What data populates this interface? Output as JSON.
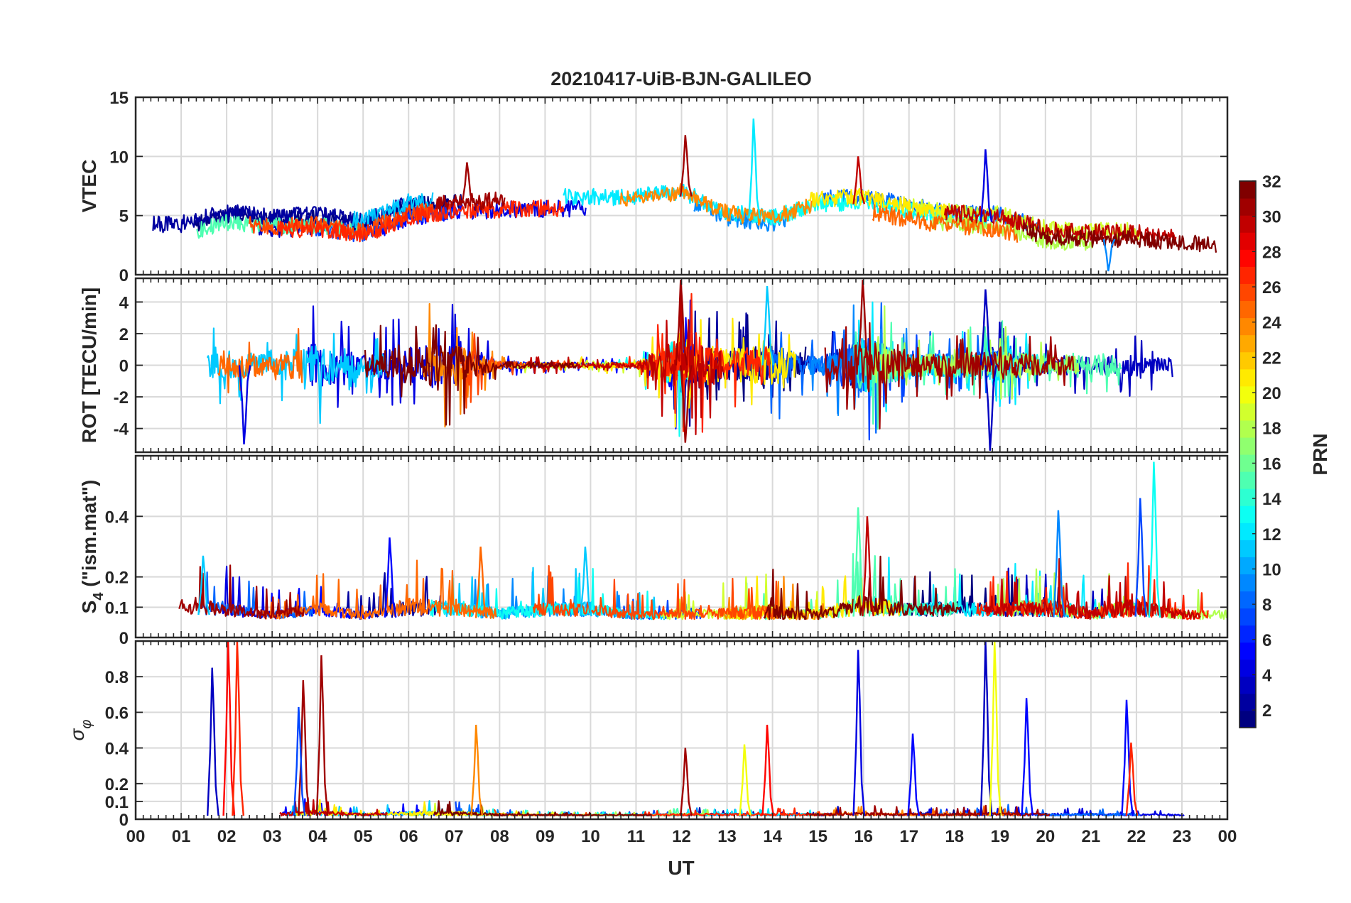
{
  "chart_data": {
    "type": "line",
    "title": "20210417-UiB-BJN-GALILEO",
    "xlabel": "UT",
    "x_ticks": [
      "00",
      "01",
      "02",
      "03",
      "04",
      "05",
      "06",
      "07",
      "08",
      "09",
      "10",
      "11",
      "12",
      "13",
      "14",
      "15",
      "16",
      "17",
      "18",
      "19",
      "20",
      "21",
      "22",
      "23",
      "00"
    ],
    "xlim_hours": [
      0,
      24
    ],
    "grid": true,
    "panels": [
      {
        "id": "vtec",
        "ylabel": "VTEC",
        "ylim": [
          0,
          15
        ],
        "yticks": [
          0,
          5,
          10,
          15
        ],
        "ytick_labels": [
          "0",
          "5",
          "10",
          "15"
        ],
        "envelope": {
          "x": [
            0,
            1,
            2,
            3,
            4,
            5,
            6,
            7,
            8,
            9,
            10,
            11,
            12,
            13,
            14,
            15,
            16,
            17,
            18,
            19,
            20,
            21,
            22,
            23,
            24
          ],
          "y": [
            3.8,
            3.8,
            4.8,
            4.5,
            4.6,
            4.0,
            5.6,
            6.0,
            6.2,
            6.3,
            6.3,
            6.3,
            6.8,
            5.0,
            4.6,
            5.8,
            6.0,
            5.2,
            4.6,
            4.4,
            3.2,
            3.0,
            3.0,
            2.6,
            2.5
          ],
          "variation": 1.6
        },
        "peaks": [
          {
            "x": 12.1,
            "y": 11.8,
            "prn": 31
          },
          {
            "x": 13.6,
            "y": 13.2,
            "prn": 12
          },
          {
            "x": 18.7,
            "y": 10.6,
            "prn": 4
          },
          {
            "x": 15.9,
            "y": 10.0,
            "prn": 30
          },
          {
            "x": 7.3,
            "y": 9.5,
            "prn": 31
          },
          {
            "x": 21.4,
            "y": 0.3,
            "prn": 9
          }
        ]
      },
      {
        "id": "rot",
        "ylabel": "ROT [TECU/min]",
        "ylim": [
          -5.5,
          5.5
        ],
        "yticks": [
          -4,
          -2,
          0,
          2,
          4
        ],
        "ytick_labels": [
          "-4",
          "-2",
          "0",
          "2",
          "4"
        ],
        "envelope": {
          "x": [
            0,
            1,
            2,
            3,
            4,
            5,
            6,
            7,
            8,
            9,
            10,
            11,
            12,
            13,
            14,
            15,
            16,
            17,
            18,
            19,
            20,
            21,
            22,
            23,
            24
          ],
          "y": [
            0,
            0,
            0,
            0,
            0,
            0,
            0,
            0,
            0,
            0,
            0,
            0,
            0,
            0,
            0,
            0,
            0,
            0,
            0,
            0,
            0,
            0,
            0,
            0,
            0
          ],
          "variation": [
            0.6,
            0.6,
            1.6,
            1.0,
            2.4,
            1.0,
            2.2,
            2.2,
            0.4,
            0.3,
            0.3,
            0.3,
            3.0,
            1.6,
            2.2,
            0.8,
            3.0,
            1.2,
            1.2,
            1.6,
            1.0,
            1.0,
            1.2,
            0.6,
            0.3
          ]
        },
        "peaks": [
          {
            "x": 12.0,
            "y": 5.4,
            "prn": 31
          },
          {
            "x": 12.1,
            "y": -4.9,
            "prn": 31
          },
          {
            "x": 16.0,
            "y": 5.4,
            "prn": 31
          },
          {
            "x": 18.8,
            "y": -5.4,
            "prn": 3
          },
          {
            "x": 18.7,
            "y": 4.8,
            "prn": 3
          },
          {
            "x": 2.4,
            "y": -5.0,
            "prn": 4
          },
          {
            "x": 13.9,
            "y": 5.0,
            "prn": 11
          }
        ]
      },
      {
        "id": "s4",
        "ylabel": "S4 (\"ism.mat\")",
        "ylabel_main": "S",
        "ylabel_sub": "4",
        "ylabel_rest": " (\"ism.mat\")",
        "ylim": [
          0,
          0.6
        ],
        "yticks": [
          0,
          0.1,
          0.2,
          0.4
        ],
        "ytick_labels": [
          "0",
          "0.1",
          "0.2",
          "0.4"
        ],
        "envelope": {
          "x": [
            0,
            1,
            2,
            3,
            4,
            5,
            6,
            7,
            8,
            9,
            10,
            11,
            12,
            13,
            14,
            15,
            16,
            17,
            18,
            19,
            20,
            21,
            22,
            23,
            24
          ],
          "y": [
            0.06,
            0.08,
            0.07,
            0.06,
            0.07,
            0.06,
            0.07,
            0.07,
            0.06,
            0.07,
            0.07,
            0.06,
            0.06,
            0.06,
            0.06,
            0.06,
            0.07,
            0.07,
            0.07,
            0.07,
            0.07,
            0.06,
            0.07,
            0.06,
            0.06
          ],
          "variation": [
            0.04,
            0.08,
            0.08,
            0.04,
            0.08,
            0.04,
            0.1,
            0.08,
            0.06,
            0.08,
            0.08,
            0.04,
            0.06,
            0.06,
            0.08,
            0.05,
            0.12,
            0.07,
            0.08,
            0.07,
            0.1,
            0.06,
            0.1,
            0.05,
            0.05
          ]
        },
        "peaks": [
          {
            "x": 1.5,
            "y": 0.27,
            "prn": 11
          },
          {
            "x": 5.6,
            "y": 0.33,
            "prn": 5
          },
          {
            "x": 7.6,
            "y": 0.3,
            "prn": 25
          },
          {
            "x": 15.9,
            "y": 0.43,
            "prn": 15
          },
          {
            "x": 16.1,
            "y": 0.4,
            "prn": 30
          },
          {
            "x": 20.3,
            "y": 0.42,
            "prn": 9
          },
          {
            "x": 22.1,
            "y": 0.46,
            "prn": 7
          },
          {
            "x": 22.4,
            "y": 0.58,
            "prn": 13
          },
          {
            "x": 9.9,
            "y": 0.3,
            "prn": 11
          }
        ]
      },
      {
        "id": "sigma",
        "ylabel": "σ φ",
        "ylabel_main": "σ",
        "ylabel_sub": "φ",
        "ylim": [
          0,
          1.0
        ],
        "yticks": [
          0,
          0.1,
          0.2,
          0.4,
          0.6,
          0.8
        ],
        "ytick_labels": [
          "0",
          "0.1",
          "0.2",
          "0.4",
          "0.6",
          "0.8"
        ],
        "envelope": {
          "x": [
            0,
            1,
            2,
            3,
            4,
            5,
            6,
            7,
            8,
            9,
            10,
            11,
            12,
            13,
            14,
            15,
            16,
            17,
            18,
            19,
            20,
            21,
            22,
            23,
            24
          ],
          "y": [
            0.02,
            0.02,
            0.02,
            0.02,
            0.02,
            0.02,
            0.02,
            0.02,
            0.02,
            0.02,
            0.02,
            0.02,
            0.02,
            0.02,
            0.02,
            0.02,
            0.02,
            0.02,
            0.02,
            0.02,
            0.02,
            0.02,
            0.02,
            0.02,
            0.02
          ],
          "variation": [
            0.02,
            0.02,
            0.05,
            0.03,
            0.05,
            0.02,
            0.04,
            0.04,
            0.02,
            0.01,
            0.01,
            0.01,
            0.02,
            0.02,
            0.02,
            0.02,
            0.03,
            0.02,
            0.02,
            0.03,
            0.02,
            0.02,
            0.02,
            0.01,
            0.01
          ]
        },
        "peaks": [
          {
            "x": 1.7,
            "y": 0.85,
            "prn": 3
          },
          {
            "x": 2.05,
            "y": 1.0,
            "prn": 28
          },
          {
            "x": 2.25,
            "y": 1.0,
            "prn": 27
          },
          {
            "x": 3.7,
            "y": 0.78,
            "prn": 31
          },
          {
            "x": 4.1,
            "y": 0.92,
            "prn": 31
          },
          {
            "x": 3.6,
            "y": 0.63,
            "prn": 7
          },
          {
            "x": 7.5,
            "y": 0.53,
            "prn": 24
          },
          {
            "x": 12.1,
            "y": 0.4,
            "prn": 31
          },
          {
            "x": 13.9,
            "y": 0.53,
            "prn": 28
          },
          {
            "x": 13.4,
            "y": 0.42,
            "prn": 20
          },
          {
            "x": 15.9,
            "y": 0.95,
            "prn": 4
          },
          {
            "x": 17.1,
            "y": 0.48,
            "prn": 5
          },
          {
            "x": 18.7,
            "y": 1.0,
            "prn": 3
          },
          {
            "x": 18.9,
            "y": 1.0,
            "prn": 20
          },
          {
            "x": 19.6,
            "y": 0.68,
            "prn": 5
          },
          {
            "x": 21.8,
            "y": 0.67,
            "prn": 5
          },
          {
            "x": 21.9,
            "y": 0.43,
            "prn": 27
          }
        ]
      }
    ],
    "colorbar": {
      "label": "PRN",
      "colormap": "jet",
      "range": [
        1,
        32
      ],
      "ticks": [
        2,
        4,
        6,
        8,
        10,
        12,
        14,
        16,
        18,
        20,
        22,
        24,
        26,
        28,
        30,
        32
      ],
      "tick_labels": [
        "2",
        "4",
        "6",
        "8",
        "10",
        "12",
        "14",
        "16",
        "18",
        "20",
        "22",
        "24",
        "26",
        "28",
        "30",
        "32"
      ]
    },
    "series": [
      {
        "prn": 1
      },
      {
        "prn": 2
      },
      {
        "prn": 3
      },
      {
        "prn": 4
      },
      {
        "prn": 5
      },
      {
        "prn": 7
      },
      {
        "prn": 8
      },
      {
        "prn": 9
      },
      {
        "prn": 11
      },
      {
        "prn": 12
      },
      {
        "prn": 13
      },
      {
        "prn": 15
      },
      {
        "prn": 18
      },
      {
        "prn": 19
      },
      {
        "prn": 21
      },
      {
        "prn": 24
      },
      {
        "prn": 25
      },
      {
        "prn": 26
      },
      {
        "prn": 27
      },
      {
        "prn": 30
      },
      {
        "prn": 31
      },
      {
        "prn": 33
      }
    ]
  }
}
